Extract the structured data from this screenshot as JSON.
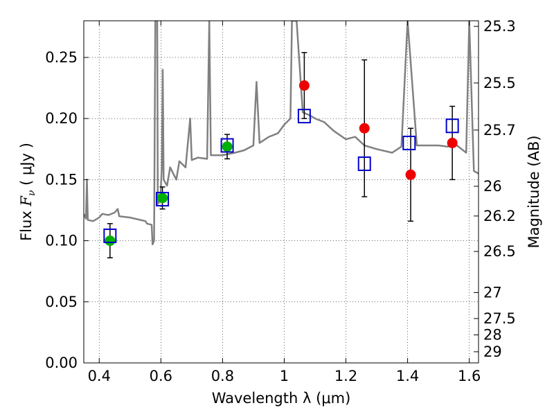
{
  "chart_data": {
    "type": "line",
    "title": "",
    "xlabel": "Wavelength  λ (μm)",
    "ylabel_left": {
      "prefix": "Flux  ",
      "symbol": "F",
      "subscript": "ν",
      "unit": "  ( μJy )"
    },
    "ylabel_right": "Magnitude (AB)",
    "xlim": [
      0.35,
      1.63
    ],
    "ylim": [
      0.0,
      0.28
    ],
    "grid": true,
    "x_ticks": [
      {
        "value": 0.4,
        "label": "0.4"
      },
      {
        "value": 0.6,
        "label": "0.6"
      },
      {
        "value": 0.8,
        "label": "0.8"
      },
      {
        "value": 1.0,
        "label": "1"
      },
      {
        "value": 1.2,
        "label": "1.2"
      },
      {
        "value": 1.4,
        "label": "1.4"
      },
      {
        "value": 1.6,
        "label": "1.6"
      }
    ],
    "y_ticks": [
      {
        "value": 0.0,
        "label": "0.00"
      },
      {
        "value": 0.05,
        "label": "0.05"
      },
      {
        "value": 0.1,
        "label": "0.10"
      },
      {
        "value": 0.15,
        "label": "0.15"
      },
      {
        "value": 0.2,
        "label": "0.20"
      },
      {
        "value": 0.25,
        "label": "0.25"
      }
    ],
    "mag_ticks": [
      "25.3",
      "25.5",
      "25.7",
      "26",
      "26.2",
      "26.5",
      "27",
      "27.5",
      "28",
      "29"
    ],
    "model_spectrum": {
      "name": "model SED",
      "color": "#808080",
      "points": [
        [
          0.35,
          0.122
        ],
        [
          0.357,
          0.118
        ],
        [
          0.36,
          0.15
        ],
        [
          0.363,
          0.117
        ],
        [
          0.38,
          0.116
        ],
        [
          0.4,
          0.119
        ],
        [
          0.41,
          0.122
        ],
        [
          0.43,
          0.121
        ],
        [
          0.45,
          0.123
        ],
        [
          0.46,
          0.126
        ],
        [
          0.465,
          0.12
        ],
        [
          0.5,
          0.119
        ],
        [
          0.55,
          0.116
        ],
        [
          0.555,
          0.114
        ],
        [
          0.57,
          0.113
        ],
        [
          0.573,
          0.097
        ],
        [
          0.578,
          0.1
        ],
        [
          0.582,
          0.28
        ],
        [
          0.588,
          0.28
        ],
        [
          0.59,
          0.13
        ],
        [
          0.598,
          0.133
        ],
        [
          0.603,
          0.16
        ],
        [
          0.606,
          0.24
        ],
        [
          0.609,
          0.15
        ],
        [
          0.62,
          0.145
        ],
        [
          0.63,
          0.16
        ],
        [
          0.65,
          0.15
        ],
        [
          0.66,
          0.165
        ],
        [
          0.68,
          0.16
        ],
        [
          0.695,
          0.2
        ],
        [
          0.7,
          0.166
        ],
        [
          0.72,
          0.168
        ],
        [
          0.75,
          0.167
        ],
        [
          0.757,
          0.28
        ],
        [
          0.762,
          0.17
        ],
        [
          0.8,
          0.17
        ],
        [
          0.84,
          0.172
        ],
        [
          0.87,
          0.174
        ],
        [
          0.9,
          0.178
        ],
        [
          0.91,
          0.23
        ],
        [
          0.92,
          0.18
        ],
        [
          0.95,
          0.185
        ],
        [
          0.98,
          0.188
        ],
        [
          1.0,
          0.195
        ],
        [
          1.02,
          0.2
        ],
        [
          1.025,
          0.28
        ],
        [
          1.04,
          0.28
        ],
        [
          1.06,
          0.205
        ],
        [
          1.08,
          0.203
        ],
        [
          1.1,
          0.2
        ],
        [
          1.13,
          0.197
        ],
        [
          1.16,
          0.19
        ],
        [
          1.2,
          0.183
        ],
        [
          1.23,
          0.185
        ],
        [
          1.26,
          0.178
        ],
        [
          1.3,
          0.175
        ],
        [
          1.35,
          0.172
        ],
        [
          1.38,
          0.177
        ],
        [
          1.4,
          0.28
        ],
        [
          1.43,
          0.178
        ],
        [
          1.46,
          0.178
        ],
        [
          1.5,
          0.178
        ],
        [
          1.53,
          0.177
        ],
        [
          1.56,
          0.178
        ],
        [
          1.59,
          0.172
        ],
        [
          1.6,
          0.28
        ],
        [
          1.615,
          0.157
        ],
        [
          1.63,
          0.155
        ]
      ]
    },
    "series": [
      {
        "name": "green points",
        "marker": "circle",
        "color": "#00b000",
        "points": [
          {
            "x": 0.435,
            "y": 0.1,
            "err": 0.014
          },
          {
            "x": 0.605,
            "y": 0.135,
            "err": 0.009
          },
          {
            "x": 0.815,
            "y": 0.177,
            "err": 0.01
          }
        ]
      },
      {
        "name": "red points",
        "marker": "circle",
        "color": "#ee0000",
        "points": [
          {
            "x": 1.065,
            "y": 0.227,
            "err": 0.027
          },
          {
            "x": 1.26,
            "y": 0.192,
            "err": 0.056
          },
          {
            "x": 1.41,
            "y": 0.154,
            "err": 0.038
          },
          {
            "x": 1.545,
            "y": 0.18,
            "err": 0.03
          }
        ]
      },
      {
        "name": "blue squares",
        "marker": "square-open",
        "color": "#0000cc",
        "points": [
          {
            "x": 0.435,
            "y": 0.104
          },
          {
            "x": 0.605,
            "y": 0.134
          },
          {
            "x": 0.815,
            "y": 0.178
          },
          {
            "x": 1.065,
            "y": 0.202
          },
          {
            "x": 1.26,
            "y": 0.163
          },
          {
            "x": 1.405,
            "y": 0.18
          },
          {
            "x": 1.545,
            "y": 0.194
          }
        ]
      }
    ]
  }
}
